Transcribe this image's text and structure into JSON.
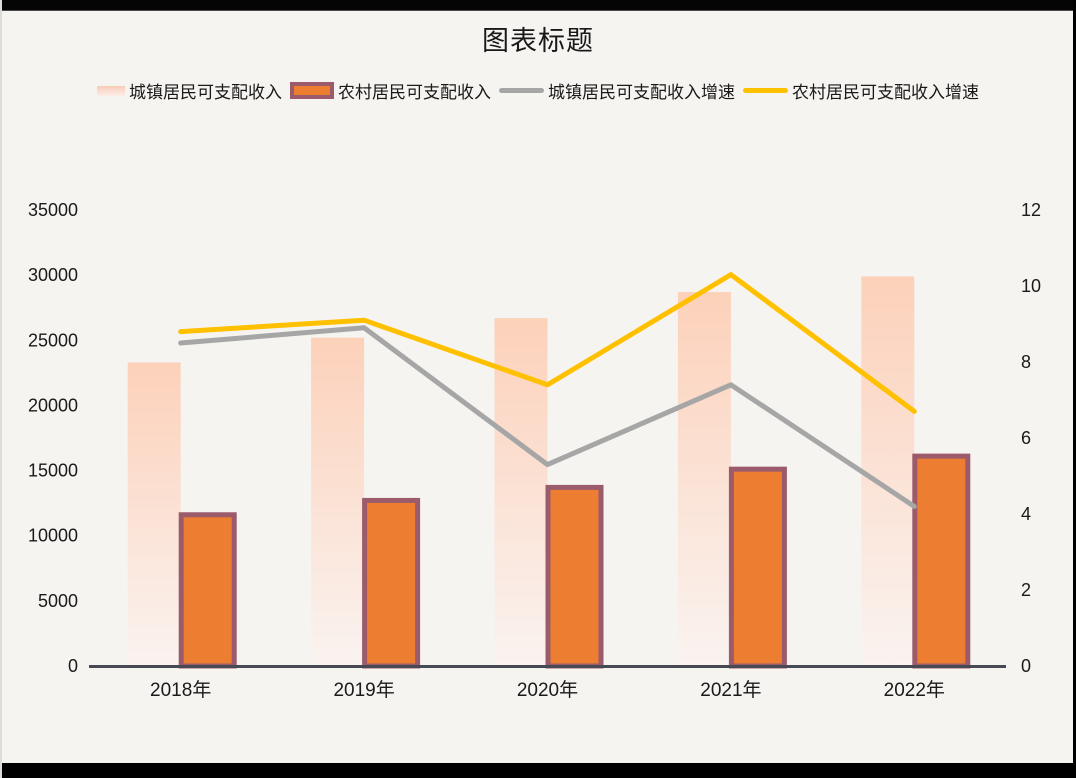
{
  "window": {
    "frame_color": "#000000",
    "background_color": "#f5f4f0"
  },
  "title": "图表标题",
  "legend": [
    {
      "label": "城镇居民可支配收入",
      "swatch": "bar-gradient",
      "color": "#f8cbb6"
    },
    {
      "label": "农村居民可支配收入",
      "swatch": "bar-bordered",
      "color": "#ed7d31"
    },
    {
      "label": "城镇居民可支配收入增速",
      "swatch": "line",
      "color": "#a6a6a6"
    },
    {
      "label": "农村居民可支配收入增速",
      "swatch": "line",
      "color": "#ffc000"
    }
  ],
  "colors": {
    "bar_urban_top": "#fcd1ba",
    "bar_urban_bottom": "#faf3f0",
    "bar_rural_fill": "#ed7d31",
    "bar_rural_border": "#9c5b6b",
    "line_urban_growth": "#a6a6a6",
    "line_rural_growth": "#ffc000",
    "axis_line": "#474a52",
    "text": "#1a1a1a"
  },
  "chart_data": {
    "type": "combo",
    "title": "图表标题",
    "categories": [
      "2018年",
      "2019年",
      "2020年",
      "2021年",
      "2022年"
    ],
    "series": [
      {
        "name": "城镇居民可支配收入",
        "type": "bar",
        "axis": "left",
        "style": "gradient",
        "values": [
          23300,
          25200,
          26700,
          28700,
          29900
        ]
      },
      {
        "name": "农村居民可支配收入",
        "type": "bar",
        "axis": "left",
        "style": "bordered",
        "values": [
          11800,
          12900,
          13900,
          15300,
          16300
        ]
      },
      {
        "name": "城镇居民可支配收入增速",
        "type": "line",
        "axis": "right",
        "style": "solid",
        "values": [
          8.5,
          8.9,
          5.3,
          7.4,
          4.2
        ]
      },
      {
        "name": "农村居民可支配收入增速",
        "type": "line",
        "axis": "right",
        "style": "solid",
        "values": [
          8.8,
          9.1,
          7.4,
          10.3,
          6.7
        ]
      }
    ],
    "left_axis": {
      "min": 0,
      "max": 35000,
      "step": 5000,
      "tick_labels": [
        "0",
        "5000",
        "10000",
        "15000",
        "20000",
        "25000",
        "30000",
        "35000"
      ]
    },
    "right_axis": {
      "min": 0,
      "max": 12,
      "step": 2,
      "tick_labels": [
        "0",
        "2",
        "4",
        "6",
        "8",
        "10",
        "12"
      ]
    },
    "grid": "off",
    "legend_position": "top"
  }
}
